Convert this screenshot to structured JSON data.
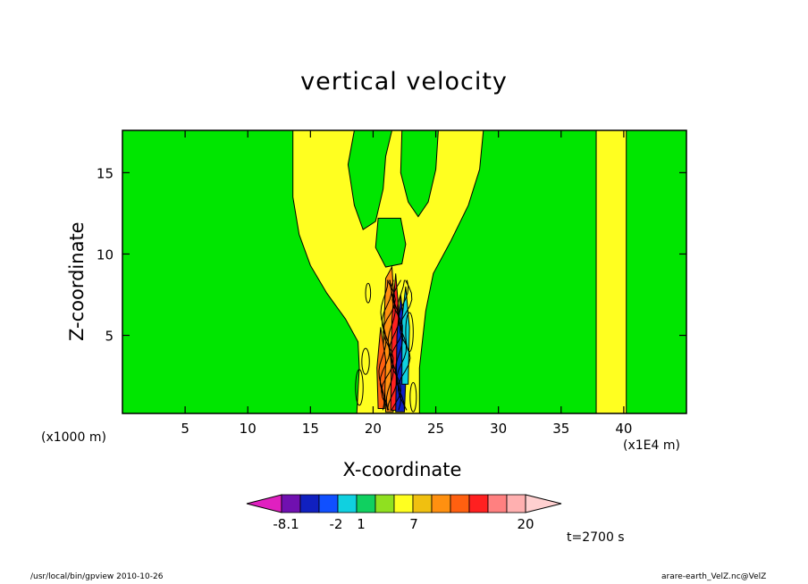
{
  "chart_data": {
    "type": "heatmap",
    "title": "vertical velocity",
    "xlabel": "X-coordinate",
    "ylabel": "Z-coordinate",
    "x_unit_note": "(x1000 m)",
    "x_exponent_note": "(x1E4 m)",
    "time_label": "t=2700 s",
    "xlim": [
      0,
      45
    ],
    "ylim": [
      0.2,
      17.6
    ],
    "x_ticks": [
      5,
      10,
      15,
      20,
      25,
      30,
      35,
      40
    ],
    "y_ticks": [
      5,
      10,
      15
    ],
    "colorbar": {
      "labels": [
        "-8.1",
        "-2",
        "1",
        "7",
        "20"
      ],
      "colors": [
        "#e020c0",
        "#7010b0",
        "#1020c0",
        "#1050ff",
        "#10d0e0",
        "#10d060",
        "#90e020",
        "#ffff20",
        "#f0c010",
        "#ff9010",
        "#ff6010",
        "#ff2020",
        "#ff8080",
        "#ffb0b0",
        "#ffd0d0"
      ]
    },
    "background_color": "#00e600",
    "positive_color": "#ffff20",
    "strong_positive_color": "#ff6010",
    "negative_color": "#1020c0"
  },
  "footer": {
    "left": "/usr/local/bin/gpview  2010-10-26",
    "right": "arare-earth_VelZ.nc@VelZ"
  }
}
